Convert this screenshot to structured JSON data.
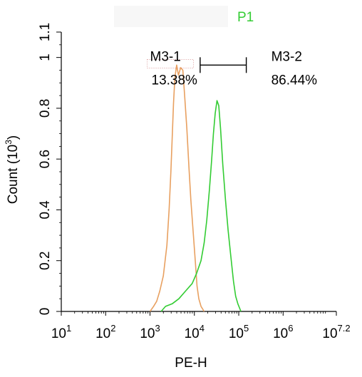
{
  "chart_data": {
    "type": "line",
    "title": "",
    "gate_label": "P1",
    "gate_label_color": "#33cc33",
    "xlabel": "PE-H",
    "ylabel": "Count",
    "ylabel_unit": "(10",
    "ylabel_unit_exp": "3",
    "ylabel_unit_close": ")",
    "x_scale": "log",
    "xlim": [
      1,
      7.2
    ],
    "ylim": [
      0,
      1.1
    ],
    "grid": false,
    "x_ticks": [
      {
        "base": "10",
        "exp": "1",
        "value": 1
      },
      {
        "base": "10",
        "exp": "2",
        "value": 2
      },
      {
        "base": "10",
        "exp": "3",
        "value": 3
      },
      {
        "base": "10",
        "exp": "4",
        "value": 4
      },
      {
        "base": "10",
        "exp": "5",
        "value": 5
      },
      {
        "base": "10",
        "exp": "6",
        "value": 6
      },
      {
        "base": "10",
        "exp": "7.2",
        "value": 7.2
      }
    ],
    "y_ticks": [
      {
        "label": "0",
        "value": 0
      },
      {
        "label": "0.2",
        "value": 0.2
      },
      {
        "label": "0.4",
        "value": 0.4
      },
      {
        "label": "0.6",
        "value": 0.6
      },
      {
        "label": "0.8",
        "value": 0.8
      },
      {
        "label": "1",
        "value": 1.0
      },
      {
        "label": "1.1",
        "value": 1.1
      }
    ],
    "series": [
      {
        "color": "#e8a060",
        "points": [
          [
            3.0,
            0.0
          ],
          [
            3.08,
            0.02
          ],
          [
            3.15,
            0.04
          ],
          [
            3.22,
            0.08
          ],
          [
            3.3,
            0.14
          ],
          [
            3.38,
            0.26
          ],
          [
            3.43,
            0.4
          ],
          [
            3.47,
            0.55
          ],
          [
            3.5,
            0.68
          ],
          [
            3.53,
            0.82
          ],
          [
            3.56,
            0.92
          ],
          [
            3.6,
            0.97
          ],
          [
            3.64,
            0.93
          ],
          [
            3.69,
            0.96
          ],
          [
            3.74,
            0.95
          ],
          [
            3.78,
            0.85
          ],
          [
            3.83,
            0.72
          ],
          [
            3.88,
            0.56
          ],
          [
            3.92,
            0.44
          ],
          [
            3.97,
            0.32
          ],
          [
            4.02,
            0.2
          ],
          [
            4.06,
            0.1
          ],
          [
            4.1,
            0.05
          ],
          [
            4.15,
            0.02
          ],
          [
            4.22,
            0.0
          ]
        ]
      },
      {
        "color": "#33cc33",
        "points": [
          [
            3.25,
            0.0
          ],
          [
            3.35,
            0.02
          ],
          [
            3.5,
            0.03
          ],
          [
            3.65,
            0.05
          ],
          [
            3.8,
            0.08
          ],
          [
            3.95,
            0.11
          ],
          [
            4.05,
            0.15
          ],
          [
            4.15,
            0.2
          ],
          [
            4.22,
            0.27
          ],
          [
            4.28,
            0.36
          ],
          [
            4.34,
            0.48
          ],
          [
            4.39,
            0.6
          ],
          [
            4.43,
            0.7
          ],
          [
            4.47,
            0.78
          ],
          [
            4.51,
            0.83
          ],
          [
            4.55,
            0.81
          ],
          [
            4.59,
            0.72
          ],
          [
            4.64,
            0.58
          ],
          [
            4.7,
            0.44
          ],
          [
            4.76,
            0.32
          ],
          [
            4.82,
            0.22
          ],
          [
            4.88,
            0.12
          ],
          [
            4.93,
            0.06
          ],
          [
            4.98,
            0.03
          ],
          [
            5.05,
            0.0
          ]
        ]
      }
    ],
    "gates": [
      {
        "name": "M3-1",
        "percent": "13.38%",
        "x_start": 3.0,
        "x_end": 3.95,
        "y": 0.97
      },
      {
        "name": "M3-2",
        "percent": "86.44%",
        "x_start": 4.13,
        "x_end": 5.17,
        "y": 0.97
      }
    ]
  }
}
